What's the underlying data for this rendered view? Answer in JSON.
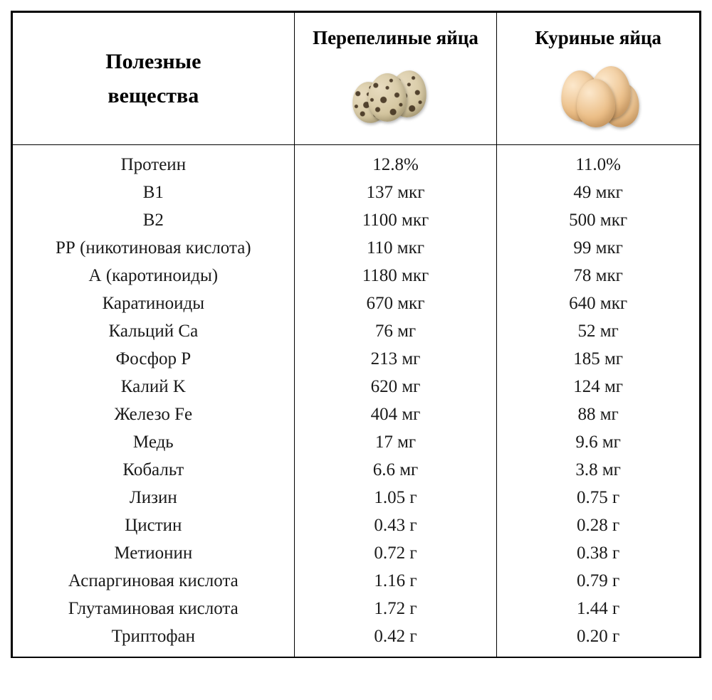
{
  "table": {
    "type": "table",
    "background_color": "#ffffff",
    "border_color": "#000000",
    "font_family": "Georgia, serif",
    "header_fontsize": 27,
    "rowheader_fontsize": 30,
    "body_fontsize": 25,
    "text_color": "#1a1a1a",
    "column_widths_percent": [
      41,
      29.5,
      29.5
    ],
    "alignment": [
      "center",
      "center",
      "center"
    ],
    "header": {
      "row_label_line1": "Полезные",
      "row_label_line2": "вещества",
      "col1": "Перепелиные яйца",
      "col2": "Куриные яйца"
    },
    "illustrations": {
      "quail_eggs": {
        "count": 3,
        "base_color": "#d4c6a0",
        "speckle_color": "#3a2a18"
      },
      "chicken_eggs": {
        "count": 4,
        "base_color": "#ecc08a",
        "highlight_color": "#fce8cc"
      }
    },
    "rows": [
      {
        "substance": "Протеин",
        "quail": "12.8%",
        "chicken": "11.0%"
      },
      {
        "substance": "В1",
        "quail": "137 мкг",
        "chicken": "49 мкг"
      },
      {
        "substance": "В2",
        "quail": "1100 мкг",
        "chicken": "500 мкг"
      },
      {
        "substance": "РР (никотиновая кислота)",
        "quail": "110 мкг",
        "chicken": "99 мкг"
      },
      {
        "substance": "А (каротиноиды)",
        "quail": "1180 мкг",
        "chicken": "78 мкг"
      },
      {
        "substance": "Каратиноиды",
        "quail": "670 мкг",
        "chicken": "640 мкг"
      },
      {
        "substance": "Кальций Ca",
        "quail": "76 мг",
        "chicken": "52 мг"
      },
      {
        "substance": "Фосфор P",
        "quail": "213 мг",
        "chicken": "185 мг"
      },
      {
        "substance": "Калий K",
        "quail": "620 мг",
        "chicken": "124 мг"
      },
      {
        "substance": "Железо Fe",
        "quail": "404 мг",
        "chicken": "88 мг"
      },
      {
        "substance": "Медь",
        "quail": "17 мг",
        "chicken": "9.6 мг"
      },
      {
        "substance": "Кобальт",
        "quail": "6.6 мг",
        "chicken": "3.8 мг"
      },
      {
        "substance": "Лизин",
        "quail": "1.05 г",
        "chicken": "0.75 г"
      },
      {
        "substance": "Цистин",
        "quail": "0.43 г",
        "chicken": "0.28 г"
      },
      {
        "substance": "Метионин",
        "quail": "0.72 г",
        "chicken": "0.38 г"
      },
      {
        "substance": "Аспаргиновая кислота",
        "quail": "1.16 г",
        "chicken": "0.79 г"
      },
      {
        "substance": "Глутаминовая кислота",
        "quail": "1.72 г",
        "chicken": "1.44 г"
      },
      {
        "substance": "Триптофан",
        "quail": "0.42 г",
        "chicken": "0.20 г"
      }
    ]
  }
}
